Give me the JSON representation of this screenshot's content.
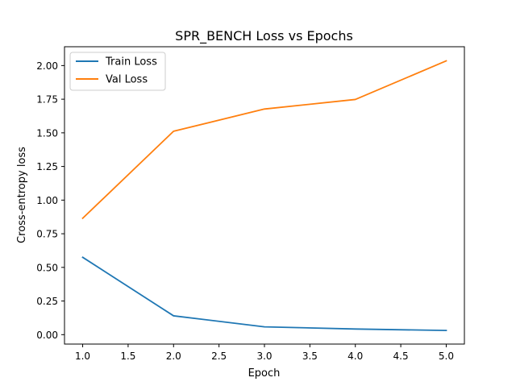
{
  "chart_data": {
    "type": "line",
    "title": "SPR_BENCH Loss vs Epochs",
    "xlabel": "Epoch",
    "ylabel": "Cross-entropy loss",
    "x": [
      1.0,
      2.0,
      3.0,
      4.0,
      5.0
    ],
    "series": [
      {
        "name": "Train Loss",
        "color": "#1f77b4",
        "values": [
          0.575,
          0.14,
          0.058,
          0.042,
          0.031
        ]
      },
      {
        "name": "Val Loss",
        "color": "#ff7f0e",
        "values": [
          0.865,
          1.512,
          1.677,
          1.748,
          2.035
        ]
      }
    ],
    "xlim": [
      0.8,
      5.2
    ],
    "ylim": [
      -0.07,
      2.14
    ],
    "xticks": [
      1.0,
      1.5,
      2.0,
      2.5,
      3.0,
      3.5,
      4.0,
      4.5,
      5.0
    ],
    "xtick_labels": [
      "1.0",
      "1.5",
      "2.0",
      "2.5",
      "3.0",
      "3.5",
      "4.0",
      "4.5",
      "5.0"
    ],
    "yticks": [
      0.0,
      0.25,
      0.5,
      0.75,
      1.0,
      1.25,
      1.5,
      1.75,
      2.0
    ],
    "ytick_labels": [
      "0.00",
      "0.25",
      "0.50",
      "0.75",
      "1.00",
      "1.25",
      "1.50",
      "1.75",
      "2.00"
    ],
    "grid": false,
    "legend_position": "top-left"
  }
}
